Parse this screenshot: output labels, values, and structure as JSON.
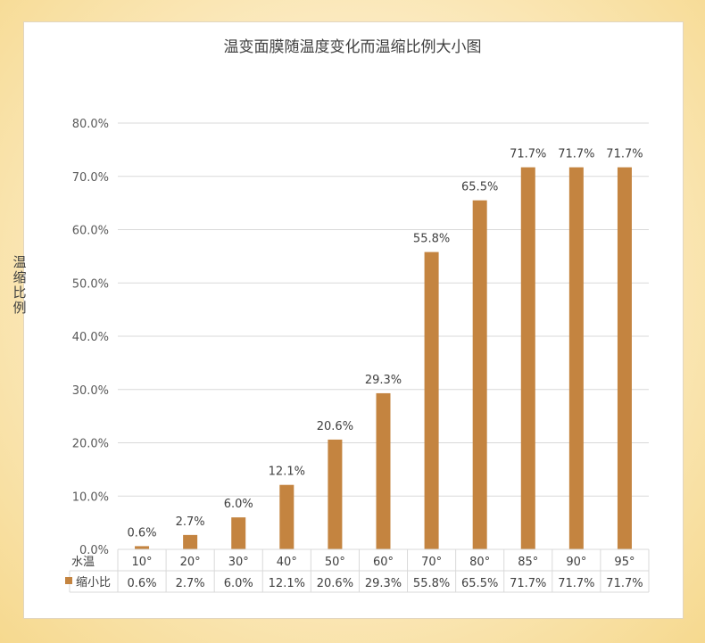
{
  "chart_data": {
    "type": "bar",
    "title": "温变面膜随温度变化而温缩比例大小图",
    "ylabel": "温缩比例",
    "table_header": "水温",
    "series_label": "缩小比",
    "ylim": [
      0,
      80
    ],
    "y_ticks": [
      "0.0%",
      "10.0%",
      "20.0%",
      "30.0%",
      "40.0%",
      "50.0%",
      "60.0%",
      "70.0%",
      "80.0%"
    ],
    "categories": [
      "10°",
      "20°",
      "30°",
      "40°",
      "50°",
      "60°",
      "70°",
      "80°",
      "85°",
      "90°",
      "95°"
    ],
    "values": [
      0.6,
      2.7,
      6.0,
      12.1,
      20.6,
      29.3,
      55.8,
      65.5,
      71.7,
      71.7,
      71.7
    ],
    "value_labels": [
      "0.6%",
      "2.7%",
      "6.0%",
      "12.1%",
      "20.6%",
      "29.3%",
      "55.8%",
      "65.5%",
      "71.7%",
      "71.7%",
      "71.7%"
    ],
    "bar_color": "#c48440",
    "grid": true,
    "legend": "data-table"
  }
}
